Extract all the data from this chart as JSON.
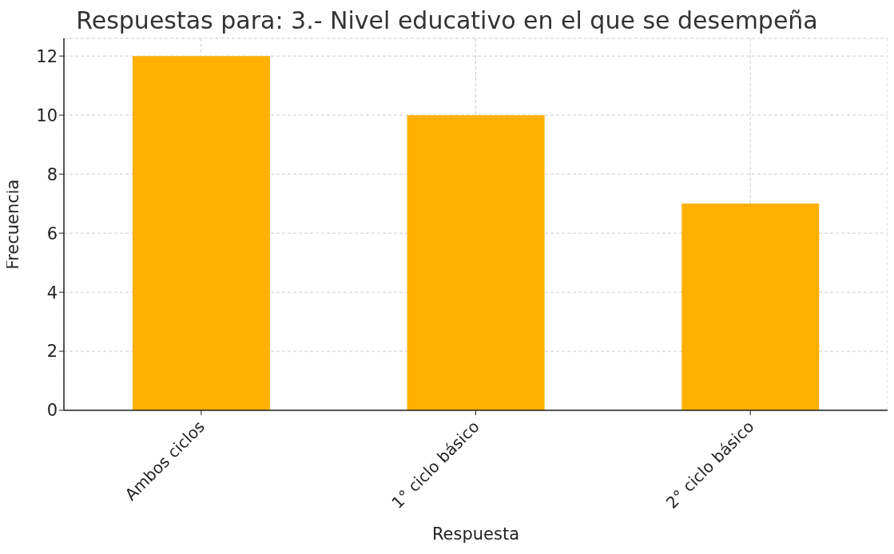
{
  "chart_data": {
    "type": "bar",
    "title": "Respuestas para: 3.- Nivel educativo en el que se desempeña",
    "xlabel": "Respuesta",
    "ylabel": "Frecuencia",
    "categories": [
      "Ambos ciclos",
      "1° ciclo básico",
      "2° ciclo básico"
    ],
    "values": [
      12,
      10,
      7
    ],
    "color": "#ffb000",
    "ylim": [
      0,
      12.6
    ],
    "yticks": [
      0,
      2,
      4,
      6,
      8,
      10,
      12
    ],
    "grid": true
  }
}
